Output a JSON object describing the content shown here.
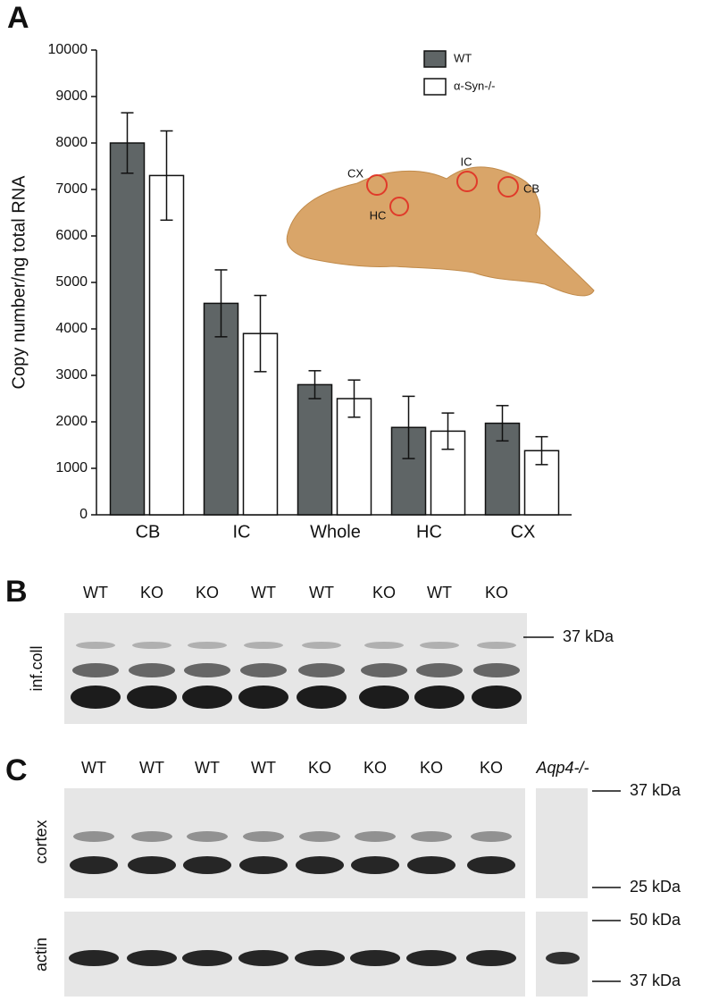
{
  "panel_labels": [
    "A",
    "B",
    "C"
  ],
  "chart_data": {
    "type": "bar",
    "y_label": "Copy number/ng total RNA",
    "categories": [
      "CB",
      "IC",
      "Whole",
      "HC",
      "CX"
    ],
    "series": [
      {
        "name": "WT",
        "color": "#5f6566",
        "values": [
          8000,
          4550,
          2800,
          1880,
          1970
        ],
        "errors": [
          650,
          720,
          300,
          670,
          380
        ]
      },
      {
        "name": "α-Syn-/-",
        "color": "#ffffff",
        "values": [
          7300,
          3900,
          2500,
          1800,
          1380
        ],
        "errors": [
          960,
          820,
          400,
          390,
          300
        ]
      }
    ],
    "ylim": [
      0,
      10000
    ],
    "yticks": [
      0,
      1000,
      2000,
      3000,
      4000,
      5000,
      6000,
      7000,
      8000,
      9000,
      10000
    ],
    "legend": "top-right",
    "annotations": [
      "CX",
      "IC",
      "HC",
      "CB"
    ]
  },
  "blot_b": {
    "lanes": [
      "WT",
      "KO",
      "KO",
      "WT",
      "WT",
      "KO",
      "WT",
      "KO"
    ],
    "row_label": "inf.coll",
    "markers": [
      "37 kDa"
    ]
  },
  "blot_c": {
    "lanes": [
      "WT",
      "WT",
      "WT",
      "WT",
      "KO",
      "KO",
      "KO",
      "KO"
    ],
    "control_lane": "Aqp4-/-",
    "rows": [
      {
        "label": "cortex",
        "markers": [
          "37 kDa",
          "25 kDa"
        ]
      },
      {
        "label": "actin",
        "markers": [
          "50 kDa",
          "37 kDa"
        ]
      }
    ]
  }
}
